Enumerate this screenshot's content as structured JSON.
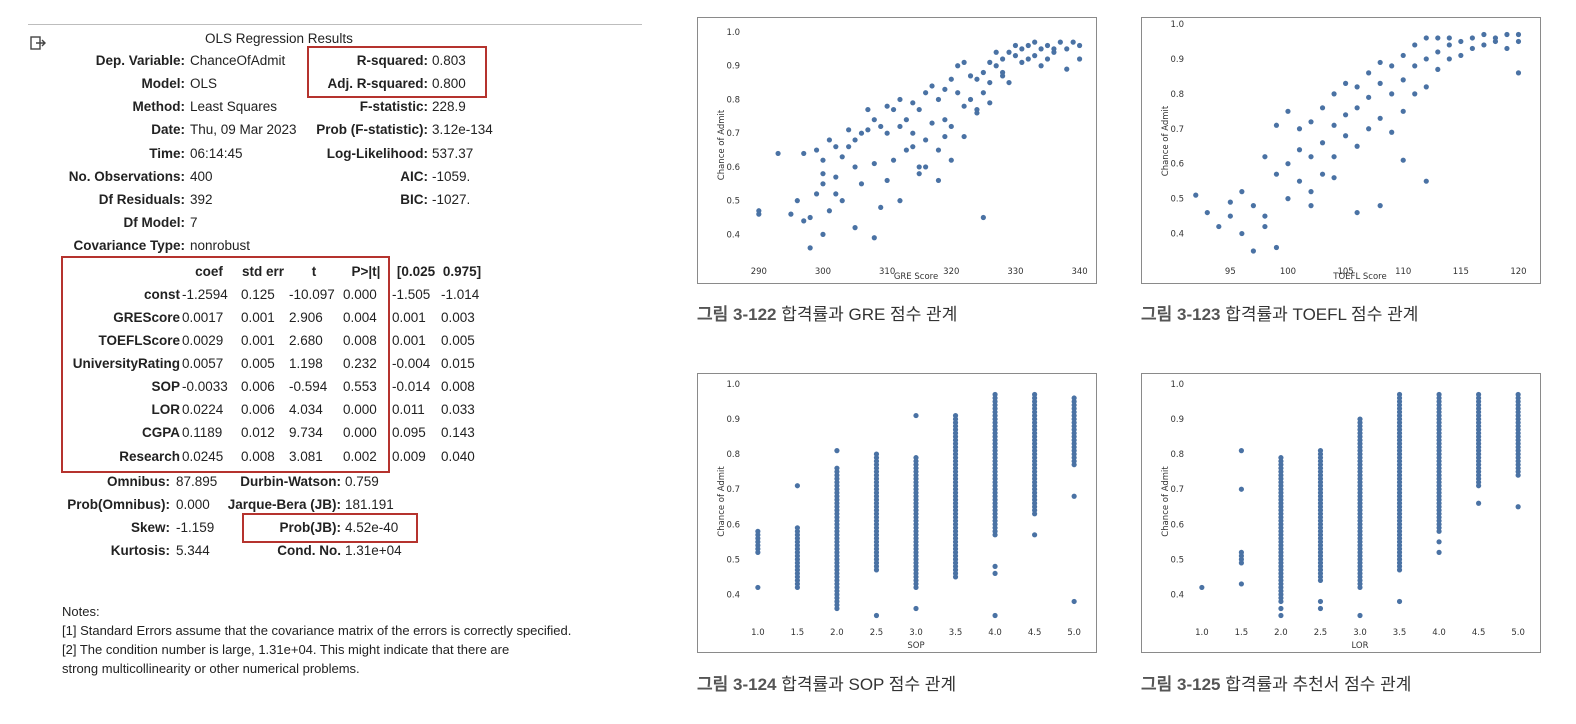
{
  "ols": {
    "title": "OLS Regression Results",
    "left": [
      {
        "label": "Dep. Variable:",
        "value": "ChanceOfAdmit"
      },
      {
        "label": "Model:",
        "value": "OLS"
      },
      {
        "label": "Method:",
        "value": "Least Squares"
      },
      {
        "label": "Date:",
        "value": "Thu, 09 Mar 2023"
      },
      {
        "label": "Time:",
        "value": "06:14:45"
      },
      {
        "label": "No. Observations:",
        "value": "400"
      },
      {
        "label": "Df Residuals:",
        "value": "392"
      },
      {
        "label": "Df Model:",
        "value": "7"
      },
      {
        "label": "Covariance Type:",
        "value": "nonrobust"
      }
    ],
    "right": [
      {
        "label": "R-squared:",
        "value": "0.803"
      },
      {
        "label": "Adj. R-squared:",
        "value": "0.800"
      },
      {
        "label": "F-statistic:",
        "value": "228.9"
      },
      {
        "label": "Prob (F-statistic):",
        "value": "3.12e-134"
      },
      {
        "label": "Log-Likelihood:",
        "value": "537.37"
      },
      {
        "label": "AIC:",
        "value": "-1059."
      },
      {
        "label": "BIC:",
        "value": "-1027."
      }
    ],
    "coef_headers": [
      "coef",
      "std err",
      "t",
      "P>|t|",
      "[0.025",
      "0.975]"
    ],
    "coef_rows": [
      {
        "name": "const",
        "vals": [
          "-1.2594",
          "0.125",
          "-10.097",
          "0.000",
          "-1.505",
          "-1.014"
        ]
      },
      {
        "name": "GREScore",
        "vals": [
          "0.0017",
          "0.001",
          "2.906",
          "0.004",
          "0.001",
          "0.003"
        ]
      },
      {
        "name": "TOEFLScore",
        "vals": [
          "0.0029",
          "0.001",
          "2.680",
          "0.008",
          "0.001",
          "0.005"
        ]
      },
      {
        "name": "UniversityRating",
        "vals": [
          "0.0057",
          "0.005",
          "1.198",
          "0.232",
          "-0.004",
          "0.015"
        ]
      },
      {
        "name": "SOP",
        "vals": [
          "-0.0033",
          "0.006",
          "-0.594",
          "0.553",
          "-0.014",
          "0.008"
        ]
      },
      {
        "name": "LOR",
        "vals": [
          "0.0224",
          "0.006",
          "4.034",
          "0.000",
          "0.011",
          "0.033"
        ]
      },
      {
        "name": "CGPA",
        "vals": [
          "0.1189",
          "0.012",
          "9.734",
          "0.000",
          "0.095",
          "0.143"
        ]
      },
      {
        "name": "Research",
        "vals": [
          "0.0245",
          "0.008",
          "3.081",
          "0.002",
          "0.009",
          "0.040"
        ]
      }
    ],
    "diag": [
      {
        "l1": "Omnibus:",
        "v1": "87.895",
        "l2": "Durbin-Watson:",
        "v2": "0.759"
      },
      {
        "l1": "Prob(Omnibus):",
        "v1": "0.000",
        "l2": "Jarque-Bera (JB):",
        "v2": "181.191"
      },
      {
        "l1": "Skew:",
        "v1": "-1.159",
        "l2": "Prob(JB):",
        "v2": "4.52e-40"
      },
      {
        "l1": "Kurtosis:",
        "v1": "5.344",
        "l2": "Cond. No.",
        "v2": "1.31e+04"
      }
    ],
    "notes": [
      "Notes:",
      "[1] Standard Errors assume that the covariance matrix of the errors is correctly specified.",
      "[2] The condition number is large, 1.31e+04. This might indicate that there are",
      "strong multicollinearity or other numerical problems."
    ]
  },
  "captions": [
    {
      "num": "그림 3-122",
      "text": " 합격률과 GRE 점수 관계"
    },
    {
      "num": "그림 3-123",
      "text": " 합격률과 TOEFL 점수 관계"
    },
    {
      "num": "그림 3-124",
      "text": " 합격률과 SOP 점수 관계"
    },
    {
      "num": "그림 3-125",
      "text": " 합격률과 추천서 점수 관계"
    }
  ],
  "colors": {
    "point": "#4a72a4",
    "highlight": "#b5332e"
  },
  "chart_data": [
    {
      "type": "scatter",
      "xlabel": "GRE Score",
      "ylabel": "Chance of Admit",
      "xlim": [
        288,
        341
      ],
      "ylim": [
        0.33,
        1.0
      ],
      "xticks": [
        "290",
        "300",
        "310",
        "320",
        "330",
        "340"
      ],
      "yticks": [
        "0.4",
        "0.5",
        "0.6",
        "0.7",
        "0.8",
        "0.9",
        "1.0"
      ],
      "x": [
        290,
        290,
        293,
        295,
        296,
        297,
        298,
        298,
        299,
        299,
        300,
        300,
        300,
        301,
        301,
        302,
        302,
        303,
        303,
        304,
        304,
        305,
        305,
        306,
        306,
        307,
        307,
        308,
        308,
        309,
        309,
        310,
        310,
        311,
        311,
        312,
        312,
        313,
        313,
        314,
        314,
        315,
        315,
        316,
        316,
        317,
        317,
        318,
        318,
        319,
        319,
        320,
        320,
        321,
        321,
        322,
        322,
        323,
        323,
        324,
        324,
        325,
        325,
        326,
        326,
        327,
        327,
        328,
        328,
        329,
        329,
        330,
        330,
        331,
        331,
        332,
        332,
        333,
        333,
        334,
        334,
        335,
        335,
        336,
        336,
        337,
        338,
        338,
        339,
        340,
        340,
        305,
        310,
        315,
        320,
        325,
        312,
        318,
        322,
        300,
        297,
        308,
        316,
        324,
        328,
        302,
        314,
        319,
        326
      ],
      "y": [
        0.46,
        0.47,
        0.64,
        0.46,
        0.5,
        0.44,
        0.36,
        0.45,
        0.65,
        0.52,
        0.62,
        0.4,
        0.55,
        0.68,
        0.47,
        0.66,
        0.57,
        0.63,
        0.5,
        0.66,
        0.71,
        0.6,
        0.68,
        0.7,
        0.55,
        0.71,
        0.77,
        0.61,
        0.74,
        0.72,
        0.48,
        0.7,
        0.78,
        0.77,
        0.62,
        0.72,
        0.8,
        0.74,
        0.65,
        0.79,
        0.7,
        0.77,
        0.58,
        0.82,
        0.68,
        0.84,
        0.73,
        0.8,
        0.65,
        0.83,
        0.74,
        0.86,
        0.72,
        0.82,
        0.9,
        0.91,
        0.78,
        0.87,
        0.8,
        0.86,
        0.77,
        0.88,
        0.82,
        0.91,
        0.85,
        0.9,
        0.94,
        0.88,
        0.92,
        0.94,
        0.85,
        0.93,
        0.96,
        0.91,
        0.95,
        0.96,
        0.92,
        0.93,
        0.97,
        0.95,
        0.9,
        0.96,
        0.92,
        0.95,
        0.94,
        0.97,
        0.95,
        0.89,
        0.97,
        0.96,
        0.92,
        0.42,
        0.56,
        0.6,
        0.62,
        0.45,
        0.5,
        0.56,
        0.69,
        0.58,
        0.64,
        0.39,
        0.6,
        0.76,
        0.87,
        0.52,
        0.66,
        0.69,
        0.79
      ]
    },
    {
      "type": "scatter",
      "xlabel": "TOEFL Score",
      "ylabel": "Chance of Admit",
      "xlim": [
        91.5,
        121
      ],
      "ylim": [
        0.33,
        1.0
      ],
      "xticks": [
        "95",
        "100",
        "105",
        "110",
        "115",
        "120"
      ],
      "yticks": [
        "0.4",
        "0.5",
        "0.6",
        "0.7",
        "0.8",
        "0.9",
        "1.0"
      ],
      "x": [
        92,
        93,
        94,
        95,
        95,
        96,
        96,
        97,
        97,
        98,
        98,
        99,
        99,
        99,
        100,
        100,
        100,
        101,
        101,
        101,
        102,
        102,
        102,
        103,
        103,
        103,
        104,
        104,
        104,
        105,
        105,
        105,
        106,
        106,
        106,
        107,
        107,
        107,
        108,
        108,
        108,
        109,
        109,
        109,
        110,
        110,
        110,
        111,
        111,
        111,
        112,
        112,
        112,
        113,
        113,
        113,
        114,
        114,
        114,
        115,
        115,
        116,
        116,
        117,
        117,
        118,
        118,
        119,
        119,
        120,
        120,
        120,
        98,
        102,
        106,
        110,
        104,
        108,
        112
      ],
      "y": [
        0.51,
        0.46,
        0.42,
        0.45,
        0.49,
        0.4,
        0.52,
        0.35,
        0.48,
        0.62,
        0.45,
        0.57,
        0.71,
        0.36,
        0.6,
        0.75,
        0.5,
        0.7,
        0.55,
        0.64,
        0.62,
        0.72,
        0.48,
        0.66,
        0.76,
        0.57,
        0.71,
        0.8,
        0.62,
        0.74,
        0.68,
        0.83,
        0.76,
        0.65,
        0.82,
        0.79,
        0.7,
        0.86,
        0.83,
        0.73,
        0.89,
        0.8,
        0.88,
        0.69,
        0.84,
        0.91,
        0.75,
        0.88,
        0.94,
        0.8,
        0.9,
        0.96,
        0.82,
        0.92,
        0.87,
        0.96,
        0.94,
        0.9,
        0.96,
        0.95,
        0.91,
        0.96,
        0.93,
        0.94,
        0.97,
        0.96,
        0.95,
        0.97,
        0.93,
        0.97,
        0.95,
        0.86,
        0.42,
        0.52,
        0.46,
        0.61,
        0.56,
        0.48,
        0.55
      ]
    },
    {
      "type": "scatter",
      "xlabel": "SOP",
      "ylabel": "Chance of Admit",
      "xlim": [
        0.85,
        5.15
      ],
      "ylim": [
        0.33,
        1.0
      ],
      "xticks": [
        "1.0",
        "1.5",
        "2.0",
        "2.5",
        "3.0",
        "3.5",
        "4.0",
        "4.5",
        "5.0"
      ],
      "yticks": [
        "0.4",
        "0.5",
        "0.6",
        "0.7",
        "0.8",
        "0.9",
        "1.0"
      ],
      "columns": [
        {
          "x": 1.0,
          "min": 0.52,
          "max": 0.58,
          "extra": [
            0.42
          ]
        },
        {
          "x": 1.5,
          "min": 0.42,
          "max": 0.59,
          "extra": [
            0.71
          ]
        },
        {
          "x": 2.0,
          "min": 0.36,
          "max": 0.76,
          "extra": [
            0.81
          ]
        },
        {
          "x": 2.5,
          "min": 0.47,
          "max": 0.8,
          "extra": [
            0.34
          ]
        },
        {
          "x": 3.0,
          "min": 0.42,
          "max": 0.79,
          "extra": [
            0.36,
            0.91
          ]
        },
        {
          "x": 3.5,
          "min": 0.45,
          "max": 0.91,
          "extra": []
        },
        {
          "x": 4.0,
          "min": 0.57,
          "max": 0.97,
          "extra": [
            0.34,
            0.46,
            0.48
          ]
        },
        {
          "x": 4.5,
          "min": 0.63,
          "max": 0.97,
          "extra": [
            0.57
          ]
        },
        {
          "x": 5.0,
          "min": 0.77,
          "max": 0.96,
          "extra": [
            0.68,
            0.38
          ]
        }
      ]
    },
    {
      "type": "scatter",
      "xlabel": "LOR",
      "ylabel": "Chance of Admit",
      "xlim": [
        0.85,
        5.15
      ],
      "ylim": [
        0.33,
        1.0
      ],
      "xticks": [
        "1.0",
        "1.5",
        "2.0",
        "2.5",
        "3.0",
        "3.5",
        "4.0",
        "4.5",
        "5.0"
      ],
      "yticks": [
        "0.4",
        "0.5",
        "0.6",
        "0.7",
        "0.8",
        "0.9",
        "1.0"
      ],
      "columns": [
        {
          "x": 1.0,
          "min": 0.42,
          "max": 0.42,
          "extra": []
        },
        {
          "x": 1.5,
          "min": 0.49,
          "max": 0.52,
          "extra": [
            0.43,
            0.7,
            0.81
          ]
        },
        {
          "x": 2.0,
          "min": 0.38,
          "max": 0.79,
          "extra": [
            0.34,
            0.36
          ]
        },
        {
          "x": 2.5,
          "min": 0.44,
          "max": 0.81,
          "extra": [
            0.36,
            0.38
          ]
        },
        {
          "x": 3.0,
          "min": 0.42,
          "max": 0.9,
          "extra": [
            0.34
          ]
        },
        {
          "x": 3.5,
          "min": 0.47,
          "max": 0.97,
          "extra": [
            0.38
          ]
        },
        {
          "x": 4.0,
          "min": 0.58,
          "max": 0.97,
          "extra": [
            0.52,
            0.55
          ]
        },
        {
          "x": 4.5,
          "min": 0.71,
          "max": 0.97,
          "extra": [
            0.66
          ]
        },
        {
          "x": 5.0,
          "min": 0.74,
          "max": 0.97,
          "extra": [
            0.65
          ]
        }
      ]
    }
  ]
}
